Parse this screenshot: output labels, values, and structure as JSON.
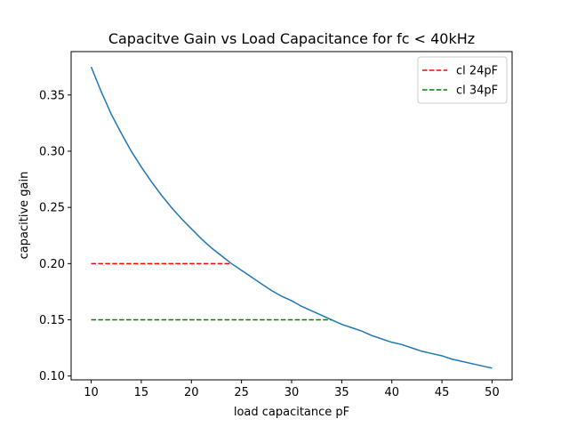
{
  "chart_data": {
    "type": "line",
    "title": "Capacitve Gain vs Load Capacitance for fc < 40kHz",
    "xlabel": "load capacitance pF",
    "ylabel": "capacitive gain",
    "xlim": [
      8.0,
      52.0
    ],
    "ylim": [
      0.0966,
      0.3886
    ],
    "x_ticks": [
      10,
      15,
      20,
      25,
      30,
      35,
      40,
      45,
      50
    ],
    "y_ticks": [
      0.1,
      0.15,
      0.2,
      0.25,
      0.3,
      0.35
    ],
    "x_tick_labels": [
      "10",
      "15",
      "20",
      "25",
      "30",
      "35",
      "40",
      "45",
      "50"
    ],
    "y_tick_labels": [
      "0.10",
      "0.15",
      "0.20",
      "0.25",
      "0.30",
      "0.35"
    ],
    "grid": false,
    "legend_position": "top-right",
    "series": [
      {
        "color": "#1f77b4",
        "style": "solid",
        "x": [
          10,
          11,
          12,
          13,
          14,
          15,
          16,
          17,
          18,
          19,
          20,
          21,
          22,
          23,
          24,
          25,
          26,
          27,
          28,
          29,
          30,
          31,
          32,
          33,
          34,
          35,
          36,
          37,
          38,
          39,
          40,
          41,
          42,
          43,
          44,
          45,
          46,
          47,
          48,
          49,
          50
        ],
        "y": [
          0.375,
          0.353,
          0.333,
          0.316,
          0.3,
          0.286,
          0.273,
          0.261,
          0.25,
          0.24,
          0.231,
          0.222,
          0.214,
          0.207,
          0.2,
          0.194,
          0.188,
          0.182,
          0.176,
          0.171,
          0.167,
          0.162,
          0.158,
          0.154,
          0.15,
          0.146,
          0.143,
          0.14,
          0.136,
          0.133,
          0.13,
          0.128,
          0.125,
          0.122,
          0.12,
          0.118,
          0.115,
          0.113,
          0.111,
          0.109,
          0.107
        ]
      },
      {
        "name": "cl 24pF",
        "color": "#ff0000",
        "style": "dashed",
        "x": [
          10,
          24
        ],
        "y": [
          0.2,
          0.2
        ]
      },
      {
        "name": "cl 34pF",
        "color": "#008000",
        "style": "dashed",
        "x": [
          10,
          34
        ],
        "y": [
          0.15,
          0.15
        ]
      }
    ]
  }
}
